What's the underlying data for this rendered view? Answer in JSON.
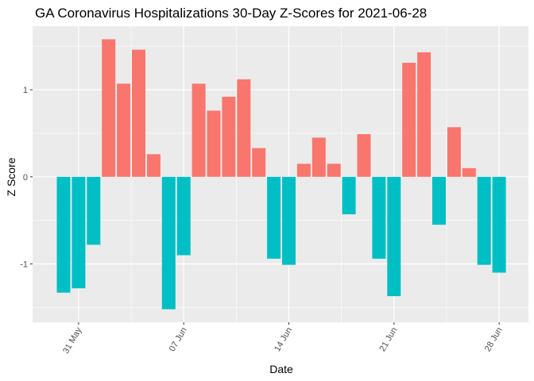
{
  "chart_data": {
    "type": "bar",
    "title": "GA Coronavirus Hospitalizations 30-Day Z-Scores for 2021-06-28",
    "xlabel": "Date",
    "ylabel": "Z Score",
    "x": [
      "2021-05-30",
      "2021-05-31",
      "2021-06-01",
      "2021-06-02",
      "2021-06-03",
      "2021-06-04",
      "2021-06-05",
      "2021-06-06",
      "2021-06-07",
      "2021-06-08",
      "2021-06-09",
      "2021-06-10",
      "2021-06-11",
      "2021-06-12",
      "2021-06-13",
      "2021-06-14",
      "2021-06-15",
      "2021-06-16",
      "2021-06-17",
      "2021-06-18",
      "2021-06-19",
      "2021-06-20",
      "2021-06-21",
      "2021-06-22",
      "2021-06-23",
      "2021-06-24",
      "2021-06-25",
      "2021-06-26",
      "2021-06-27",
      "2021-06-28"
    ],
    "values": [
      -1.33,
      -1.28,
      -0.78,
      1.58,
      1.07,
      1.46,
      0.26,
      -1.52,
      -0.9,
      1.07,
      0.76,
      0.92,
      1.12,
      0.33,
      -0.94,
      -1.01,
      0.15,
      0.45,
      0.15,
      -0.43,
      0.49,
      -0.94,
      -1.37,
      1.31,
      1.43,
      -0.55,
      0.57,
      0.1,
      -1.01,
      -1.1
    ],
    "x_ticks": [
      "31 May",
      "07 Jun",
      "14 Jun",
      "21 Jun",
      "28 Jun"
    ],
    "y_ticks": [
      "-1",
      "0",
      "1"
    ],
    "ylim": [
      -1.67,
      1.73
    ],
    "colors": {
      "positive": "#F8766D",
      "negative": "#00BFC4",
      "panel": "#EBEBEB",
      "grid": "#FFFFFF"
    }
  }
}
